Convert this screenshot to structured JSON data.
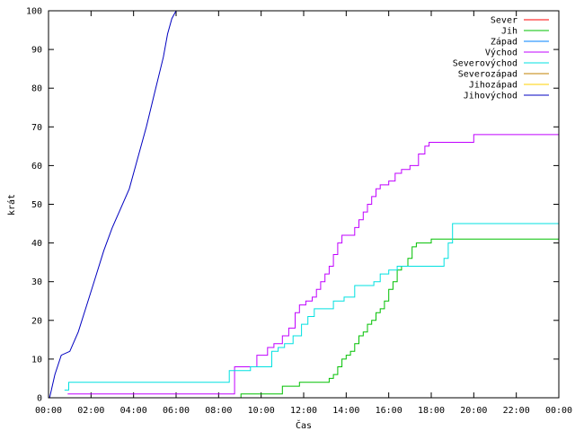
{
  "chart_data": {
    "type": "line",
    "title": "",
    "xlabel": "Čas",
    "ylabel": "krát",
    "xlim": [
      0,
      24
    ],
    "ylim": [
      0,
      100
    ],
    "x_ticks": [
      {
        "v": 0,
        "label": "00:00"
      },
      {
        "v": 2,
        "label": "02:00"
      },
      {
        "v": 4,
        "label": "04:00"
      },
      {
        "v": 6,
        "label": "06:00"
      },
      {
        "v": 8,
        "label": "08:00"
      },
      {
        "v": 10,
        "label": "10:00"
      },
      {
        "v": 12,
        "label": "12:00"
      },
      {
        "v": 14,
        "label": "14:00"
      },
      {
        "v": 16,
        "label": "16:00"
      },
      {
        "v": 18,
        "label": "18:00"
      },
      {
        "v": 20,
        "label": "20:00"
      },
      {
        "v": 22,
        "label": "22:00"
      },
      {
        "v": 24,
        "label": "00:00"
      }
    ],
    "y_ticks": [
      0,
      10,
      20,
      30,
      40,
      50,
      60,
      70,
      80,
      90,
      100
    ],
    "grid": false,
    "legend_position": "top-right",
    "series": [
      {
        "name": "Sever",
        "color": "#ff0000",
        "step": true,
        "x": [],
        "y": []
      },
      {
        "name": "Jih",
        "color": "#00c000",
        "step": true,
        "x": [
          9.0,
          9.05,
          10.7,
          11.0,
          11.8,
          12.6,
          13.2,
          13.4,
          13.6,
          13.8,
          14.0,
          14.2,
          14.4,
          14.6,
          14.8,
          15.0,
          15.2,
          15.4,
          15.6,
          15.8,
          16.0,
          16.2,
          16.4,
          16.6,
          16.9,
          17.1,
          17.3,
          17.5,
          18.0,
          19.0,
          20.0,
          24.0
        ],
        "y": [
          0,
          1,
          1,
          3,
          4,
          4,
          5,
          6,
          8,
          10,
          11,
          12,
          14,
          16,
          17,
          19,
          20,
          22,
          23,
          25,
          28,
          30,
          33,
          34,
          36,
          39,
          40,
          40,
          41,
          41,
          41,
          41
        ]
      },
      {
        "name": "Západ",
        "color": "#0080ff",
        "step": true,
        "x": [],
        "y": []
      },
      {
        "name": "Východ",
        "color": "#c000ff",
        "step": true,
        "x": [
          0.9,
          8.55,
          8.75,
          9.8,
          10.3,
          10.6,
          11.0,
          11.3,
          11.6,
          11.8,
          12.1,
          12.4,
          12.6,
          12.8,
          13.0,
          13.2,
          13.4,
          13.6,
          13.8,
          14.0,
          14.4,
          14.6,
          14.8,
          15.0,
          15.2,
          15.4,
          15.6,
          16.0,
          16.3,
          16.6,
          17.0,
          17.4,
          17.7,
          17.9,
          18.1,
          19.5,
          20.0,
          24.0
        ],
        "y": [
          1,
          1,
          8,
          11,
          13,
          14,
          16,
          18,
          22,
          24,
          25,
          26,
          28,
          30,
          32,
          34,
          37,
          40,
          42,
          42,
          44,
          46,
          48,
          50,
          52,
          54,
          55,
          56,
          58,
          59,
          60,
          63,
          65,
          66,
          66,
          66,
          68,
          68
        ]
      },
      {
        "name": "Severovýchod",
        "color": "#00e0e0",
        "step": true,
        "x": [
          0.75,
          0.95,
          8.35,
          8.5,
          9.5,
          10.0,
          10.5,
          10.8,
          11.1,
          11.5,
          11.9,
          12.2,
          12.5,
          12.9,
          13.4,
          13.9,
          14.4,
          14.8,
          15.3,
          15.6,
          16.0,
          16.4,
          17.3,
          18.6,
          18.8,
          19.0,
          19.2,
          24.0
        ],
        "y": [
          2,
          4,
          4,
          7,
          8,
          8,
          12,
          13,
          14,
          16,
          19,
          21,
          23,
          23,
          25,
          26,
          29,
          29,
          30,
          32,
          33,
          34,
          34,
          36,
          40,
          45,
          45,
          45
        ]
      },
      {
        "name": "Severozápad",
        "color": "#c08000",
        "step": true,
        "x": [],
        "y": []
      },
      {
        "name": "Jihozápad",
        "color": "#ffd000",
        "step": true,
        "x": [],
        "y": []
      },
      {
        "name": "Jihovýchod",
        "color": "#0000c0",
        "step": false,
        "x": [
          0.05,
          0.3,
          0.6,
          1.0,
          1.4,
          1.8,
          2.2,
          2.6,
          3.0,
          3.4,
          3.8,
          4.2,
          4.6,
          5.0,
          5.4,
          5.6,
          5.8,
          6.0
        ],
        "y": [
          0,
          6,
          11,
          12,
          17,
          24,
          31,
          38,
          44,
          49,
          54,
          62,
          70,
          79,
          88,
          94,
          98,
          100
        ]
      }
    ]
  }
}
